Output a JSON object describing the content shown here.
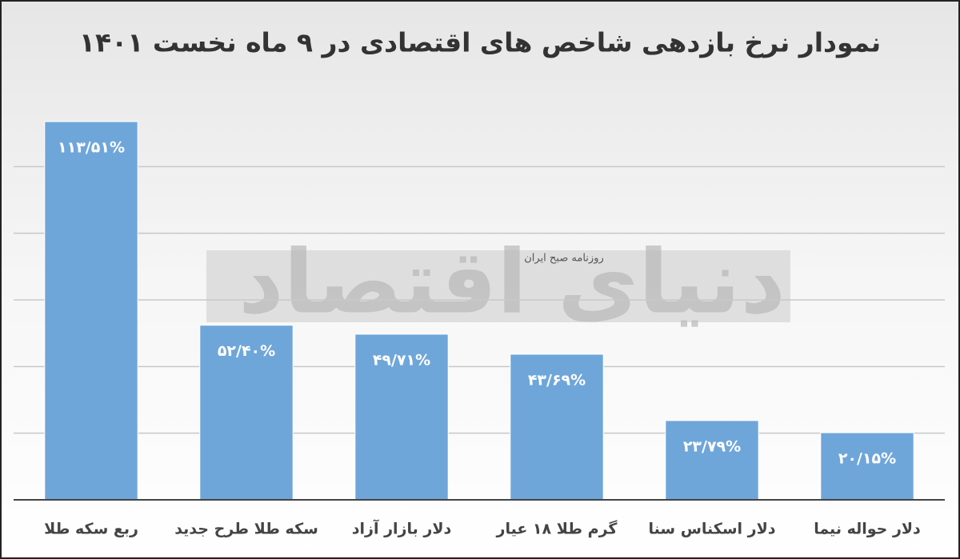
{
  "chart_data": {
    "type": "bar",
    "title": "نمودار نرخ بازدهی شاخص های اقتصادی در ۹ ماه نخست ۱۴۰۱",
    "categories": [
      "ربع سکه طلا",
      "سکه طلا طرح جدید",
      "دلار بازار آزاد",
      "گرم طلا ۱۸ عیار",
      "دلار اسکناس سنا",
      "دلار حواله نیما"
    ],
    "values": [
      113.51,
      52.4,
      49.71,
      43.69,
      23.79,
      20.15
    ],
    "value_labels": [
      "۱۱۳/۵۱%",
      "۵۲/۴۰%",
      "۴۹/۷۱%",
      "۴۳/۶۹%",
      "۲۳/۷۹%",
      "۲۰/۱۵%"
    ],
    "color": "#6fa6da",
    "ylim": [
      0,
      120
    ],
    "yticks": [
      0,
      20,
      40,
      60,
      80,
      100
    ],
    "grid": true,
    "watermark": {
      "logo": "دنیای اقتصاد",
      "tagline": "روزنامه صبح ایران"
    }
  }
}
